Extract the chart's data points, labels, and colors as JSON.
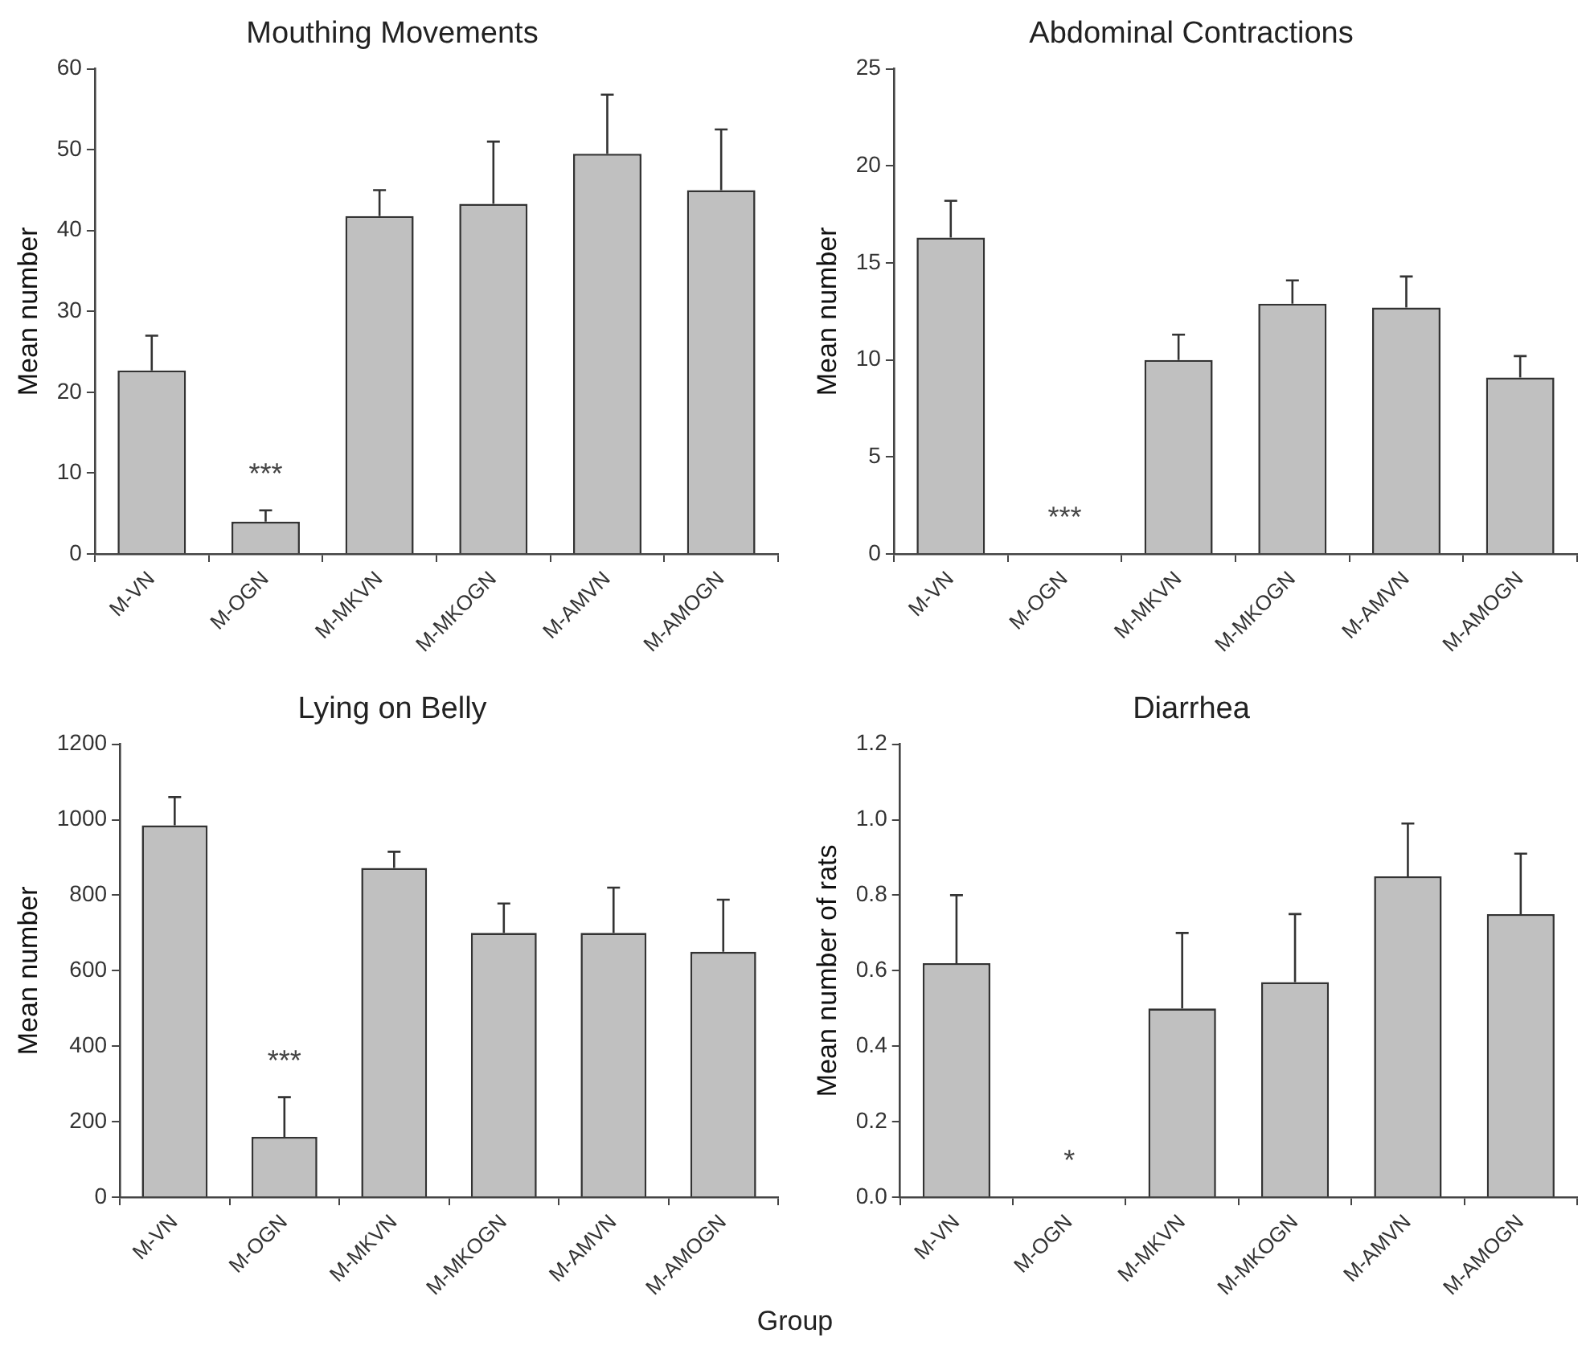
{
  "chart_data": [
    {
      "type": "bar",
      "title": "Mouthing Movements",
      "ylabel": "Mean number",
      "categories": [
        "M-VN",
        "M-OGN",
        "M-MKVN",
        "M-MKOGN",
        "M-AMVN",
        "M-AMOGN"
      ],
      "values": [
        22.7,
        4,
        41.8,
        43.3,
        49.5,
        45
      ],
      "errors": [
        [
          22.7,
          27
        ],
        [
          4,
          5.4
        ],
        [
          41.8,
          45
        ],
        [
          43.3,
          51
        ],
        [
          49.5,
          56.8
        ],
        [
          45,
          52.5
        ]
      ],
      "color": "#c0c0c0",
      "ylim": [
        0,
        60
      ],
      "yticks": [
        0,
        10,
        20,
        30,
        40,
        50,
        60
      ],
      "grid": false,
      "legend": false,
      "annotations": [
        "***"
      ]
    },
    {
      "type": "bar",
      "title": "Abdominal Contractions",
      "ylabel": "Mean number",
      "categories": [
        "M-VN",
        "M-OGN",
        "M-MKVN",
        "M-MKOGN",
        "M-AMVN",
        "M-AMOGN"
      ],
      "values": [
        16.3,
        0,
        10,
        12.9,
        12.7,
        9.1
      ],
      "errors": [
        [
          16.3,
          18.2
        ],
        null,
        [
          10,
          11.3
        ],
        [
          12.9,
          14.1
        ],
        [
          12.7,
          14.3
        ],
        [
          9.1,
          10.2
        ]
      ],
      "color": "#c0c0c0",
      "ylim": [
        0,
        25
      ],
      "yticks": [
        0,
        5,
        10,
        15,
        20,
        25
      ],
      "grid": false,
      "legend": false,
      "annotations": [
        "***"
      ]
    },
    {
      "type": "bar",
      "title": "Lying on Belly",
      "ylabel": "Mean number",
      "categories": [
        "M-VN",
        "M-OGN",
        "M-MKVN",
        "M-MKOGN",
        "M-AMVN",
        "M-AMOGN"
      ],
      "values": [
        985,
        160,
        872,
        700,
        700,
        650
      ],
      "errors": [
        [
          985,
          1060
        ],
        [
          160,
          265
        ],
        [
          872,
          915
        ],
        [
          700,
          778
        ],
        [
          700,
          820
        ],
        [
          650,
          788
        ]
      ],
      "color": "#c0c0c0",
      "ylim": [
        0,
        1200
      ],
      "yticks": [
        0,
        200,
        400,
        600,
        800,
        1000,
        1200
      ],
      "grid": false,
      "legend": false,
      "annotations": [
        "***"
      ]
    },
    {
      "type": "bar",
      "title": "Diarrhea",
      "ylabel": "Mean number of rats",
      "xlabel": "Group",
      "categories": [
        "M-VN",
        "M-OGN",
        "M-MKVN",
        "M-MKOGN",
        "M-AMVN",
        "M-AMOGN"
      ],
      "values": [
        0.62,
        0,
        0.5,
        0.57,
        0.85,
        0.75
      ],
      "errors": [
        [
          0.62,
          0.8
        ],
        null,
        [
          0.5,
          0.7
        ],
        [
          0.57,
          0.75
        ],
        [
          0.85,
          0.99
        ],
        [
          0.75,
          0.91
        ]
      ],
      "color": "#c0c0c0",
      "ylim": [
        0,
        1.2
      ],
      "yticks": [
        {
          "value": 0,
          "label": "0.0"
        },
        {
          "value": 0.2,
          "label": "0.2"
        },
        {
          "value": 0.4,
          "label": "0.4"
        },
        {
          "value": 0.6,
          "label": "0.6"
        },
        {
          "value": 0.8,
          "label": "0.8"
        },
        {
          "value": 1,
          "label": "1.0"
        },
        {
          "value": 1.2,
          "label": "1.2"
        }
      ],
      "grid": false,
      "legend": false,
      "annotations": [
        "*"
      ]
    }
  ]
}
